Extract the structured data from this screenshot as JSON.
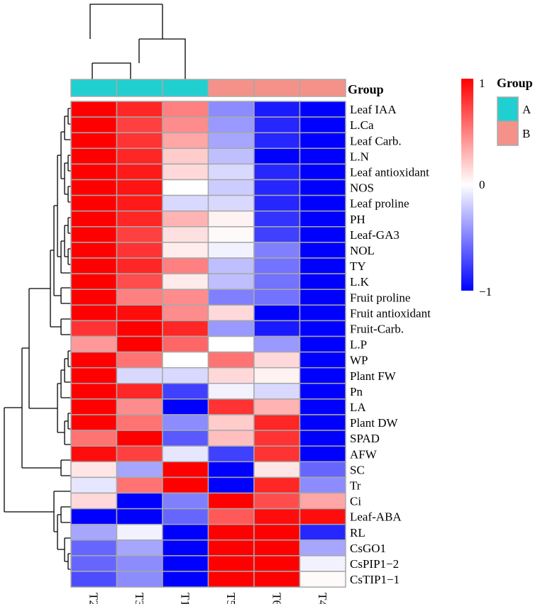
{
  "chart_data": {
    "type": "heatmap",
    "title": "",
    "columns": [
      "T2",
      "T3",
      "T1",
      "T5",
      "T6",
      "T4"
    ],
    "column_groups": [
      "A",
      "A",
      "A",
      "B",
      "B",
      "B"
    ],
    "group_annotation_label": "Group",
    "group_legend": {
      "title": "Group",
      "items": [
        {
          "label": "A",
          "color": "#20D0D0"
        },
        {
          "label": "B",
          "color": "#F4928A"
        }
      ]
    },
    "colorbar": {
      "min": -1,
      "mid": 0,
      "max": 1,
      "tick_labels": [
        "1",
        "0",
        "−1"
      ],
      "low_color": "#0000FF",
      "mid_color": "#FFFFFF",
      "high_color": "#FF0000"
    },
    "rows": [
      {
        "name": "Leaf IAA",
        "values": [
          1.0,
          0.85,
          0.5,
          -0.45,
          -0.9,
          -1.0
        ]
      },
      {
        "name": "L.Ca",
        "values": [
          1.0,
          0.75,
          0.45,
          -0.4,
          -0.85,
          -1.0
        ]
      },
      {
        "name": "Leaf Carb.",
        "values": [
          1.0,
          0.8,
          0.35,
          -0.35,
          -0.85,
          -1.0
        ]
      },
      {
        "name": "L.N",
        "values": [
          1.0,
          0.85,
          0.2,
          -0.25,
          -1.0,
          -1.0
        ]
      },
      {
        "name": "Leaf antioxidant",
        "values": [
          1.0,
          0.9,
          0.15,
          -0.15,
          -0.85,
          -1.0
        ]
      },
      {
        "name": "NOS",
        "values": [
          1.0,
          0.92,
          0.0,
          -0.2,
          -0.85,
          -1.0
        ]
      },
      {
        "name": "Leaf proline",
        "values": [
          1.0,
          0.9,
          -0.15,
          -0.15,
          -0.85,
          -1.0
        ]
      },
      {
        "name": "PH",
        "values": [
          1.0,
          0.85,
          0.3,
          0.05,
          -0.8,
          -1.0
        ]
      },
      {
        "name": "Leaf-GA3",
        "values": [
          1.0,
          0.75,
          0.12,
          0.02,
          -0.75,
          -1.0
        ]
      },
      {
        "name": "NOL",
        "values": [
          1.0,
          0.8,
          0.07,
          -0.05,
          -0.5,
          -1.0
        ]
      },
      {
        "name": "TY",
        "values": [
          1.0,
          0.85,
          0.5,
          -0.25,
          -0.55,
          -1.0
        ]
      },
      {
        "name": "L.K",
        "values": [
          1.0,
          0.7,
          0.08,
          -0.25,
          -0.55,
          -1.0
        ]
      },
      {
        "name": "Fruit proline",
        "values": [
          1.0,
          0.5,
          0.45,
          -0.5,
          -0.55,
          -1.0
        ]
      },
      {
        "name": "Fruit antioxidant",
        "values": [
          1.0,
          0.95,
          0.45,
          0.15,
          -1.0,
          -1.0
        ]
      },
      {
        "name": "Fruit-Carb.",
        "values": [
          0.8,
          1.0,
          0.85,
          -0.4,
          -0.9,
          -1.0
        ]
      },
      {
        "name": "L.P",
        "values": [
          0.4,
          1.0,
          0.6,
          0.0,
          -0.4,
          -1.0
        ]
      },
      {
        "name": "WP",
        "values": [
          1.0,
          0.55,
          0.0,
          0.55,
          0.15,
          -1.0
        ]
      },
      {
        "name": "Plant FW",
        "values": [
          1.0,
          -0.15,
          -0.15,
          0.15,
          0.05,
          -1.0
        ]
      },
      {
        "name": "Pn",
        "values": [
          1.0,
          0.85,
          -0.75,
          -0.05,
          -0.15,
          -1.0
        ]
      },
      {
        "name": "LA",
        "values": [
          1.0,
          0.45,
          -1.0,
          0.8,
          0.3,
          -1.0
        ]
      },
      {
        "name": "Plant DW",
        "values": [
          1.0,
          0.55,
          -0.45,
          0.2,
          0.85,
          -1.0
        ]
      },
      {
        "name": "SPAD",
        "values": [
          0.55,
          1.0,
          -0.65,
          0.25,
          0.8,
          -1.0
        ]
      },
      {
        "name": "AFW",
        "values": [
          0.95,
          0.75,
          -0.1,
          -0.75,
          0.8,
          -1.0
        ]
      },
      {
        "name": "SC",
        "values": [
          0.1,
          -0.35,
          1.0,
          -1.0,
          0.1,
          -0.6
        ]
      },
      {
        "name": "Tr",
        "values": [
          -0.1,
          0.55,
          1.0,
          -1.0,
          0.85,
          -0.45
        ]
      },
      {
        "name": "Ci",
        "values": [
          0.15,
          -1.0,
          -0.5,
          1.0,
          0.7,
          0.35
        ]
      },
      {
        "name": "Leaf-ABA",
        "values": [
          -1.0,
          -1.0,
          -0.6,
          0.65,
          0.95,
          0.95
        ]
      },
      {
        "name": "RL",
        "values": [
          -0.35,
          -0.05,
          -1.0,
          1.0,
          1.0,
          -0.85
        ]
      },
      {
        "name": "CsGO1",
        "values": [
          -0.6,
          -0.35,
          -1.0,
          1.0,
          1.0,
          -0.35
        ]
      },
      {
        "name": "CsPIP1−2",
        "values": [
          -0.6,
          -0.45,
          -1.0,
          1.0,
          1.0,
          -0.05
        ]
      },
      {
        "name": "CsTIP1−1",
        "values": [
          -0.7,
          -0.45,
          -1.0,
          1.0,
          1.0,
          0.02
        ]
      }
    ]
  }
}
